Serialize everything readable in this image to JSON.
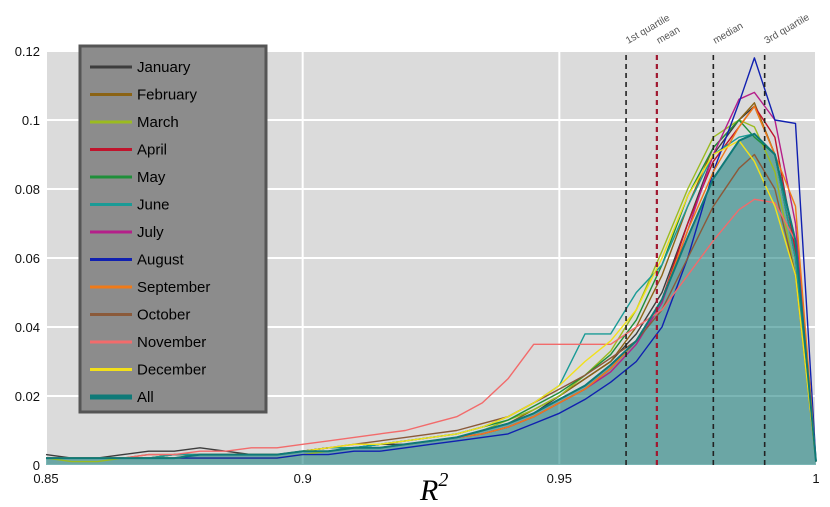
{
  "chart_data": {
    "type": "area",
    "xlabel": "R",
    "xlabel_sup": "2",
    "xlim": [
      0.85,
      1.0
    ],
    "ylim": [
      0,
      0.12
    ],
    "xticks": [
      0.85,
      0.9,
      0.95,
      1
    ],
    "xtick_labels": [
      "0.85",
      "0.9",
      "0.95",
      "1"
    ],
    "yticks": [
      0,
      0.02,
      0.04,
      0.06,
      0.08,
      0.1,
      0.12
    ],
    "ytick_labels": [
      "0",
      "0.02",
      "0.04",
      "0.06",
      "0.08",
      "0.1",
      "0.12"
    ],
    "grid": true,
    "legend_position": "top-left",
    "vlines": [
      {
        "label": "1st quartile",
        "x": 0.963,
        "color": "#222222"
      },
      {
        "label": "mean",
        "x": 0.969,
        "color": "#a01830"
      },
      {
        "label": "median",
        "x": 0.98,
        "color": "#222222"
      },
      {
        "label": "3rd quartile",
        "x": 0.99,
        "color": "#222222"
      }
    ],
    "x": [
      0.85,
      0.855,
      0.86,
      0.865,
      0.87,
      0.875,
      0.88,
      0.885,
      0.89,
      0.895,
      0.9,
      0.905,
      0.91,
      0.915,
      0.92,
      0.925,
      0.93,
      0.935,
      0.94,
      0.945,
      0.95,
      0.955,
      0.96,
      0.965,
      0.97,
      0.975,
      0.98,
      0.985,
      0.988,
      0.992,
      0.996,
      1.0
    ],
    "series": [
      {
        "name": "January",
        "color": "#3d3d3d",
        "values": [
          0.003,
          0.002,
          0.002,
          0.003,
          0.004,
          0.004,
          0.005,
          0.004,
          0.003,
          0.003,
          0.004,
          0.005,
          0.005,
          0.006,
          0.006,
          0.007,
          0.008,
          0.01,
          0.012,
          0.015,
          0.02,
          0.025,
          0.03,
          0.038,
          0.05,
          0.07,
          0.09,
          0.1,
          0.104,
          0.09,
          0.06,
          0.001
        ]
      },
      {
        "name": "February",
        "color": "#8b6314",
        "values": [
          0.002,
          0.002,
          0.002,
          0.002,
          0.003,
          0.003,
          0.003,
          0.003,
          0.003,
          0.003,
          0.004,
          0.005,
          0.005,
          0.005,
          0.006,
          0.007,
          0.008,
          0.01,
          0.012,
          0.016,
          0.02,
          0.025,
          0.03,
          0.04,
          0.055,
          0.075,
          0.092,
          0.1,
          0.105,
          0.09,
          0.06,
          0.001
        ]
      },
      {
        "name": "March",
        "color": "#9bbb1f",
        "values": [
          0.002,
          0.001,
          0.001,
          0.002,
          0.002,
          0.002,
          0.002,
          0.002,
          0.002,
          0.002,
          0.003,
          0.004,
          0.005,
          0.005,
          0.006,
          0.007,
          0.008,
          0.01,
          0.013,
          0.016,
          0.02,
          0.026,
          0.033,
          0.045,
          0.062,
          0.08,
          0.095,
          0.1,
          0.098,
          0.085,
          0.055,
          0.001
        ]
      },
      {
        "name": "April",
        "color": "#c0142c",
        "values": [
          0.002,
          0.002,
          0.002,
          0.002,
          0.002,
          0.003,
          0.003,
          0.003,
          0.003,
          0.003,
          0.004,
          0.004,
          0.005,
          0.005,
          0.006,
          0.007,
          0.008,
          0.009,
          0.011,
          0.014,
          0.018,
          0.022,
          0.028,
          0.036,
          0.048,
          0.07,
          0.088,
          0.098,
          0.104,
          0.095,
          0.062,
          0.001
        ]
      },
      {
        "name": "May",
        "color": "#1f8f3a",
        "values": [
          0.002,
          0.002,
          0.002,
          0.002,
          0.002,
          0.003,
          0.003,
          0.003,
          0.003,
          0.003,
          0.004,
          0.005,
          0.005,
          0.006,
          0.007,
          0.008,
          0.009,
          0.011,
          0.013,
          0.017,
          0.021,
          0.026,
          0.032,
          0.042,
          0.058,
          0.078,
          0.092,
          0.1,
          0.095,
          0.09,
          0.065,
          0.001
        ]
      },
      {
        "name": "June",
        "color": "#1a9b96",
        "values": [
          0.002,
          0.002,
          0.002,
          0.002,
          0.002,
          0.003,
          0.003,
          0.003,
          0.003,
          0.003,
          0.004,
          0.005,
          0.005,
          0.006,
          0.007,
          0.008,
          0.009,
          0.011,
          0.014,
          0.018,
          0.023,
          0.038,
          0.038,
          0.05,
          0.058,
          0.075,
          0.09,
          0.095,
          0.096,
          0.09,
          0.06,
          0.001
        ]
      },
      {
        "name": "July",
        "color": "#b51f8a",
        "values": [
          0.002,
          0.002,
          0.002,
          0.002,
          0.002,
          0.002,
          0.003,
          0.003,
          0.003,
          0.003,
          0.004,
          0.004,
          0.005,
          0.005,
          0.006,
          0.007,
          0.008,
          0.009,
          0.011,
          0.014,
          0.018,
          0.022,
          0.027,
          0.035,
          0.047,
          0.068,
          0.09,
          0.106,
          0.108,
          0.1,
          0.07,
          0.001
        ]
      },
      {
        "name": "August",
        "color": "#1020b0",
        "values": [
          0.002,
          0.002,
          0.002,
          0.002,
          0.002,
          0.002,
          0.002,
          0.002,
          0.002,
          0.002,
          0.003,
          0.003,
          0.004,
          0.004,
          0.005,
          0.006,
          0.007,
          0.008,
          0.009,
          0.012,
          0.015,
          0.019,
          0.024,
          0.03,
          0.04,
          0.06,
          0.085,
          0.105,
          0.118,
          0.1,
          0.099,
          0.001
        ]
      },
      {
        "name": "September",
        "color": "#f07a18",
        "values": [
          0.002,
          0.002,
          0.002,
          0.002,
          0.002,
          0.002,
          0.003,
          0.003,
          0.003,
          0.003,
          0.004,
          0.004,
          0.005,
          0.005,
          0.006,
          0.007,
          0.008,
          0.009,
          0.011,
          0.014,
          0.018,
          0.022,
          0.028,
          0.036,
          0.048,
          0.068,
          0.085,
          0.098,
          0.104,
          0.09,
          0.075,
          0.001
        ]
      },
      {
        "name": "October",
        "color": "#8b5a3a",
        "values": [
          0.002,
          0.002,
          0.002,
          0.002,
          0.002,
          0.002,
          0.003,
          0.003,
          0.003,
          0.003,
          0.004,
          0.005,
          0.006,
          0.007,
          0.008,
          0.009,
          0.01,
          0.012,
          0.014,
          0.018,
          0.022,
          0.026,
          0.031,
          0.036,
          0.045,
          0.06,
          0.075,
          0.086,
          0.09,
          0.08,
          0.055,
          0.001
        ]
      },
      {
        "name": "November",
        "color": "#f26b6b",
        "values": [
          0.002,
          0.002,
          0.002,
          0.002,
          0.003,
          0.003,
          0.004,
          0.004,
          0.005,
          0.005,
          0.006,
          0.007,
          0.008,
          0.009,
          0.01,
          0.012,
          0.014,
          0.018,
          0.025,
          0.035,
          0.035,
          0.035,
          0.035,
          0.04,
          0.045,
          0.055,
          0.065,
          0.074,
          0.077,
          0.076,
          0.065,
          0.001
        ]
      },
      {
        "name": "December",
        "color": "#f2e01a",
        "values": [
          0.002,
          0.002,
          0.002,
          0.002,
          0.002,
          0.002,
          0.003,
          0.003,
          0.003,
          0.003,
          0.004,
          0.005,
          0.006,
          0.006,
          0.007,
          0.008,
          0.009,
          0.011,
          0.014,
          0.018,
          0.023,
          0.03,
          0.036,
          0.045,
          0.06,
          0.078,
          0.09,
          0.094,
          0.088,
          0.075,
          0.055,
          0.001
        ]
      },
      {
        "name": "All",
        "color": "#0f7a78",
        "values": [
          0.002,
          0.002,
          0.002,
          0.002,
          0.002,
          0.002,
          0.003,
          0.003,
          0.003,
          0.003,
          0.004,
          0.004,
          0.005,
          0.005,
          0.006,
          0.007,
          0.008,
          0.01,
          0.012,
          0.015,
          0.019,
          0.023,
          0.029,
          0.036,
          0.048,
          0.066,
          0.083,
          0.094,
          0.096,
          0.09,
          0.065,
          0.001
        ]
      }
    ]
  }
}
